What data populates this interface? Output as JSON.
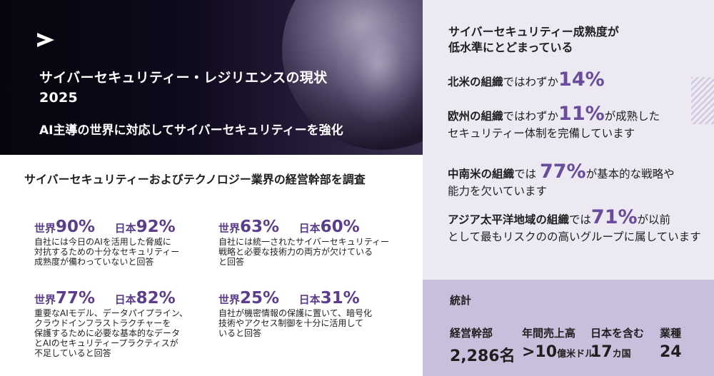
{
  "hero": {
    "title_line1": "サイバーセキュリティー・レジリエンスの現状",
    "title_line2": "2025",
    "subtitle": "AI主導の世界に対応してサイバーセキュリティーを強化"
  },
  "survey": {
    "title": "サイバーセキュリティーおよびテクノロジー業界の経営幹部を調査",
    "stats": [
      {
        "world_label": "世界",
        "world_value": "90%",
        "japan_label": "日本",
        "japan_value": "92%",
        "description": [
          "自社には今日のAIを活用した脅威に",
          "対抗するための十分なセキュリティー",
          "成熟度が備わっていないと回答"
        ]
      },
      {
        "world_label": "世界",
        "world_value": "63%",
        "japan_label": "日本",
        "japan_value": "60%",
        "description": [
          "自社には統一されたサイバーセキュリティー",
          "戦略と必要な技術力の両方が欠けている",
          "と回答"
        ]
      },
      {
        "world_label": "世界",
        "world_value": "77%",
        "japan_label": "日本",
        "japan_value": "82%",
        "description": [
          "重要なAIモデル、データパイプライン、",
          "クラウドインフラストラクチャーを",
          "保護するために必要な基本的なデータ",
          "とAIのセキュリティープラクティスが",
          "不足していると回答"
        ]
      },
      {
        "world_label": "世界",
        "world_value": "25%",
        "japan_label": "日本",
        "japan_value": "31%",
        "description": [
          "自社が機密情報の保護に置いて、暗号化",
          "技術やアクセス制御を十分に活用して",
          "いると回答"
        ]
      }
    ]
  },
  "maturity": {
    "title_line1": "サイバーセキュリティー成熟度が",
    "title_line2": "低水準にとどまっている",
    "items": [
      {
        "region": "北米の組織",
        "mid": "ではわずか",
        "pct": "14%",
        "after": "",
        "line2": ""
      },
      {
        "region": "欧州の組織",
        "mid": "ではわずか",
        "pct": "11%",
        "after": "が成熟した",
        "line2": "セキュリティー体制を完備しています"
      },
      {
        "region": "中南米の組織",
        "mid": "では ",
        "pct": "77%",
        "after": "が基本的な戦略や",
        "line2": "能力を欠いています"
      },
      {
        "region": "アジア太平洋地域の組織",
        "mid": "では",
        "pct": "71%",
        "after": "が以前",
        "line2": "として最もリスクのの高いグループに属しています"
      }
    ]
  },
  "statistics": {
    "title": "統計",
    "items": [
      {
        "label": "経営幹部",
        "value": "2,286名",
        "unit": ""
      },
      {
        "label": "年間売上高",
        "value": ">10",
        "unit": "億米ドル"
      },
      {
        "label": "日本を含む",
        "value": "17",
        "unit": "カ国"
      },
      {
        "label": "業種",
        "value": "24",
        "unit": ""
      }
    ]
  },
  "colors": {
    "accent": "#5b3d8c",
    "panel": "#ece9f3",
    "stats_panel": "#c9bfdc",
    "hero_bg": "#0f0a1d"
  },
  "icons": {
    "logo": "greater-than-chevron-logo"
  }
}
